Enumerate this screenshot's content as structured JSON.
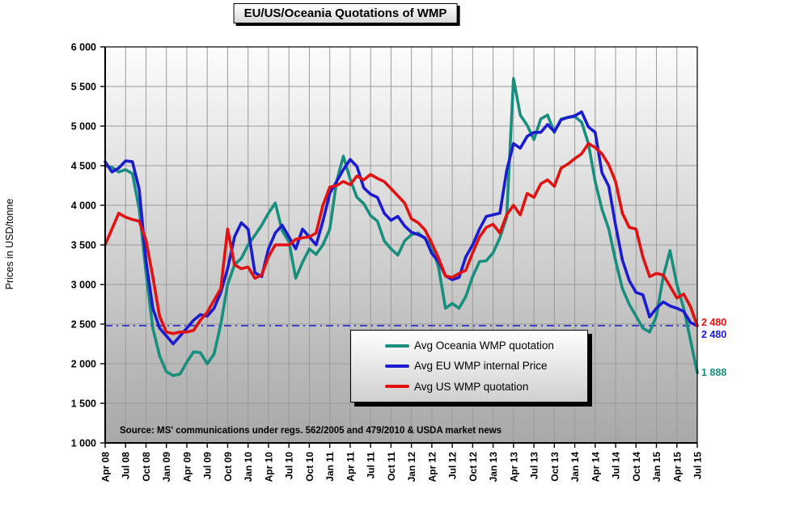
{
  "title": "EU/US/Oceania Quotations of WMP",
  "y_axis_title": "Prices in USD/tonne",
  "source_note": "Source: MS' communications under regs. 562/2005 and 479/2010 & USDA market news",
  "legend": [
    {
      "label": "Avg Oceania WMP quotation",
      "color": "#1a8e7d"
    },
    {
      "label": "Avg EU WMP internal Price",
      "color": "#1b1bd0"
    },
    {
      "label": "Avg US WMP quotation",
      "color": "#e01212"
    }
  ],
  "end_labels": {
    "us": {
      "text": "2 480",
      "color": "#e01212"
    },
    "eu": {
      "text": "2 480",
      "color": "#1b1bd0"
    },
    "oceania": {
      "text": "1 888",
      "color": "#1a8e7d"
    }
  },
  "chart_data": {
    "type": "line",
    "title": "EU/US/Oceania Quotations of WMP",
    "ylabel": "Prices in USD/tonne",
    "ylim": [
      1000,
      6000
    ],
    "y_tick_step": 500,
    "y_tick_labels": [
      "6 000",
      "5 500",
      "5 000",
      "4 500",
      "4 000",
      "3 500",
      "3 000",
      "2 500",
      "2 000",
      "1 500",
      "1 000"
    ],
    "grid": true,
    "legend_position": "inside-bottom-center",
    "reference_line": {
      "value": 2480,
      "color": "#2828cc",
      "style": "dash-dot"
    },
    "x_tick_labels": [
      "Apr 08",
      "Jul 08",
      "Oct 08",
      "Jan 09",
      "Apr 09",
      "Jul 09",
      "Oct 09",
      "Jan 10",
      "Apr 10",
      "Jul 10",
      "Oct 10",
      "Jan 11",
      "Apr 11",
      "Jul 11",
      "Oct 11",
      "Jan 12",
      "Apr 12",
      "Jul 12",
      "Oct 12",
      "Jan 13",
      "Apr 13",
      "Jul 13",
      "Oct 13",
      "Jan 14",
      "Apr 14",
      "Jul 14",
      "Oct 14",
      "Jan 15",
      "Apr 15",
      "Jul 15"
    ],
    "months": [
      "Apr 08",
      "May 08",
      "Jun 08",
      "Jul 08",
      "Aug 08",
      "Sep 08",
      "Oct 08",
      "Nov 08",
      "Dec 08",
      "Jan 09",
      "Feb 09",
      "Mar 09",
      "Apr 09",
      "May 09",
      "Jun 09",
      "Jul 09",
      "Aug 09",
      "Sep 09",
      "Oct 09",
      "Nov 09",
      "Dec 09",
      "Jan 10",
      "Feb 10",
      "Mar 10",
      "Apr 10",
      "May 10",
      "Jun 10",
      "Jul 10",
      "Aug 10",
      "Sep 10",
      "Oct 10",
      "Nov 10",
      "Dec 10",
      "Jan 11",
      "Feb 11",
      "Mar 11",
      "Apr 11",
      "May 11",
      "Jun 11",
      "Jul 11",
      "Aug 11",
      "Sep 11",
      "Oct 11",
      "Nov 11",
      "Dec 11",
      "Jan 12",
      "Feb 12",
      "Mar 12",
      "Apr 12",
      "May 12",
      "Jun 12",
      "Jul 12",
      "Aug 12",
      "Sep 12",
      "Oct 12",
      "Nov 12",
      "Dec 12",
      "Jan 13",
      "Feb 13",
      "Mar 13",
      "Apr 13",
      "May 13",
      "Jun 13",
      "Jul 13",
      "Aug 13",
      "Sep 13",
      "Oct 13",
      "Nov 13",
      "Dec 13",
      "Jan 14",
      "Feb 14",
      "Mar 14",
      "Apr 14",
      "May 14",
      "Jun 14",
      "Jul 14",
      "Aug 14",
      "Sep 14",
      "Oct 14",
      "Nov 14",
      "Dec 14",
      "Jan 15",
      "Feb 15",
      "Mar 15",
      "Apr 15",
      "May 15",
      "Jun 15",
      "Jul 15"
    ],
    "series": [
      {
        "name": "Avg Oceania WMP quotation",
        "color": "#1a8e7d",
        "end_value": 1888,
        "values": [
          4500,
          4480,
          4420,
          4450,
          4400,
          3950,
          3150,
          2450,
          2100,
          1900,
          1850,
          1870,
          2020,
          2150,
          2140,
          2000,
          2120,
          2500,
          3000,
          3250,
          3330,
          3500,
          3620,
          3750,
          3900,
          4030,
          3680,
          3540,
          3080,
          3280,
          3450,
          3380,
          3500,
          3700,
          4300,
          4620,
          4330,
          4100,
          4020,
          3870,
          3800,
          3550,
          3450,
          3370,
          3550,
          3630,
          3650,
          3580,
          3490,
          3210,
          2700,
          2760,
          2700,
          2850,
          3100,
          3290,
          3300,
          3400,
          3590,
          3850,
          5600,
          5140,
          5010,
          4830,
          5090,
          5140,
          4920,
          5090,
          5110,
          5120,
          5050,
          4780,
          4300,
          3950,
          3700,
          3300,
          2950,
          2750,
          2600,
          2450,
          2400,
          2600,
          3100,
          3430,
          3000,
          2700,
          2300,
          1888
        ]
      },
      {
        "name": "Avg EU WMP internal Price",
        "color": "#1b1bd0",
        "end_value": 2480,
        "values": [
          4550,
          4420,
          4470,
          4560,
          4550,
          4200,
          3300,
          2700,
          2450,
          2350,
          2250,
          2350,
          2450,
          2550,
          2620,
          2600,
          2700,
          2900,
          3200,
          3600,
          3780,
          3700,
          3150,
          3100,
          3450,
          3650,
          3750,
          3600,
          3450,
          3700,
          3600,
          3500,
          3800,
          4150,
          4300,
          4450,
          4580,
          4490,
          4220,
          4140,
          4100,
          3900,
          3810,
          3860,
          3740,
          3660,
          3630,
          3590,
          3390,
          3290,
          3110,
          3060,
          3090,
          3350,
          3500,
          3700,
          3860,
          3880,
          3900,
          4440,
          4780,
          4720,
          4870,
          4920,
          4920,
          5020,
          4930,
          5080,
          5110,
          5130,
          5180,
          4990,
          4920,
          4410,
          4240,
          3750,
          3310,
          3050,
          2900,
          2870,
          2590,
          2700,
          2780,
          2730,
          2700,
          2660,
          2520,
          2480
        ]
      },
      {
        "name": "Avg US WMP quotation",
        "color": "#e01212",
        "end_value": 2480,
        "values": [
          3500,
          3700,
          3900,
          3850,
          3820,
          3800,
          3560,
          3100,
          2600,
          2400,
          2380,
          2400,
          2400,
          2420,
          2550,
          2650,
          2800,
          2950,
          3700,
          3250,
          3200,
          3220,
          3080,
          3120,
          3350,
          3500,
          3500,
          3500,
          3570,
          3590,
          3600,
          3650,
          4000,
          4230,
          4250,
          4300,
          4260,
          4370,
          4320,
          4390,
          4340,
          4300,
          4210,
          4120,
          4030,
          3830,
          3780,
          3690,
          3520,
          3330,
          3110,
          3090,
          3140,
          3180,
          3400,
          3600,
          3720,
          3760,
          3650,
          3880,
          4000,
          3880,
          4150,
          4100,
          4270,
          4320,
          4240,
          4470,
          4520,
          4590,
          4650,
          4780,
          4730,
          4650,
          4510,
          4300,
          3900,
          3720,
          3700,
          3350,
          3100,
          3140,
          3120,
          2980,
          2830,
          2880,
          2720,
          2480
        ]
      }
    ]
  }
}
